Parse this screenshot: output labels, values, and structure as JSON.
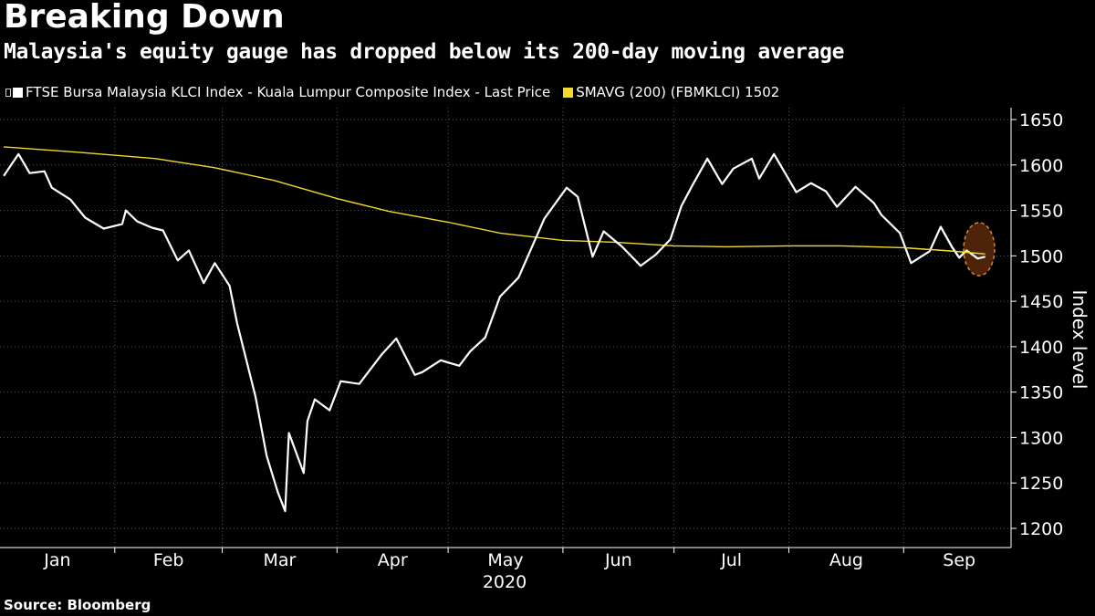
{
  "title": "Breaking Down",
  "subtitle": "Malaysia's equity gauge has dropped below its 200-day moving average",
  "source": "Source: Bloomberg",
  "colors": {
    "background": "#000000",
    "price_line": "#ffffff",
    "sma_line": "#f2d92b",
    "highlight_fill": "#5a2a0a",
    "highlight_stroke": "#d9862a",
    "grid": "#555555"
  },
  "chart_data": {
    "type": "line",
    "title": "Breaking Down",
    "subtitle": "Malaysia's equity gauge has dropped below its 200-day moving average",
    "xlabel": "2020",
    "ylabel": "Index level",
    "ylim": [
      1200,
      1660
    ],
    "yticks": [
      1200,
      1250,
      1300,
      1350,
      1400,
      1450,
      1500,
      1550,
      1600,
      1650
    ],
    "x_axis": {
      "year_label": "2020",
      "months": [
        "Jan",
        "Feb",
        "Mar",
        "Apr",
        "May",
        "Jun",
        "Jul",
        "Aug",
        "Sep"
      ]
    },
    "grid": true,
    "legend_position": "top-left",
    "annotation": "circle highlighting latest price near the moving average",
    "series": [
      {
        "name": "FTSE Bursa Malaysia KLCI Index - Kuala Lumpur Composite Index - Last Price",
        "legend_icon": "white-square",
        "color": "#ffffff",
        "x": [
          "2020-01-02",
          "2020-01-06",
          "2020-01-09",
          "2020-01-13",
          "2020-01-15",
          "2020-01-20",
          "2020-01-24",
          "2020-01-29",
          "2020-02-03",
          "2020-02-04",
          "2020-02-07",
          "2020-02-11",
          "2020-02-14",
          "2020-02-18",
          "2020-02-21",
          "2020-02-25",
          "2020-02-28",
          "2020-03-03",
          "2020-03-05",
          "2020-03-10",
          "2020-03-13",
          "2020-03-16",
          "2020-03-18",
          "2020-03-19",
          "2020-03-23",
          "2020-03-24",
          "2020-03-26",
          "2020-03-30",
          "2020-04-02",
          "2020-04-07",
          "2020-04-13",
          "2020-04-17",
          "2020-04-22",
          "2020-04-24",
          "2020-04-29",
          "2020-05-04",
          "2020-05-07",
          "2020-05-11",
          "2020-05-15",
          "2020-05-20",
          "2020-05-27",
          "2020-06-02",
          "2020-06-05",
          "2020-06-09",
          "2020-06-12",
          "2020-06-17",
          "2020-06-22",
          "2020-06-26",
          "2020-06-30",
          "2020-07-03",
          "2020-07-06",
          "2020-07-10",
          "2020-07-14",
          "2020-07-17",
          "2020-07-22",
          "2020-07-24",
          "2020-07-28",
          "2020-08-03",
          "2020-08-07",
          "2020-08-11",
          "2020-08-14",
          "2020-08-19",
          "2020-08-24",
          "2020-08-26",
          "2020-08-31",
          "2020-09-03",
          "2020-09-08",
          "2020-09-11",
          "2020-09-14",
          "2020-09-16",
          "2020-09-18",
          "2020-09-21",
          "2020-09-23"
        ],
        "values": [
          1588,
          1612,
          1591,
          1593,
          1575,
          1562,
          1542,
          1530,
          1535,
          1550,
          1538,
          1531,
          1528,
          1495,
          1506,
          1470,
          1492,
          1467,
          1426,
          1345,
          1280,
          1240,
          1219,
          1305,
          1261,
          1318,
          1342,
          1330,
          1362,
          1359,
          1391,
          1409,
          1369,
          1372,
          1385,
          1379,
          1395,
          1410,
          1455,
          1476,
          1541,
          1575,
          1565,
          1499,
          1527,
          1510,
          1489,
          1501,
          1518,
          1555,
          1578,
          1607,
          1579,
          1596,
          1607,
          1585,
          1612,
          1570,
          1580,
          1571,
          1554,
          1576,
          1558,
          1545,
          1525,
          1492,
          1505,
          1532,
          1510,
          1498,
          1506,
          1497,
          1499
        ]
      },
      {
        "name": "SMAVG (200) (FBMKLCI) 1502",
        "legend_icon": "yellow-square",
        "color": "#f2d92b",
        "x": [
          "2020-01-02",
          "2020-01-22",
          "2020-02-12",
          "2020-02-28",
          "2020-03-15",
          "2020-04-01",
          "2020-04-15",
          "2020-05-01",
          "2020-05-15",
          "2020-06-01",
          "2020-06-15",
          "2020-07-01",
          "2020-07-15",
          "2020-08-01",
          "2020-08-15",
          "2020-09-01",
          "2020-09-15",
          "2020-09-23"
        ],
        "values": [
          1620,
          1614,
          1607,
          1597,
          1583,
          1563,
          1549,
          1537,
          1525,
          1517,
          1515,
          1511,
          1510,
          1511,
          1511,
          1509,
          1505,
          1502
        ]
      }
    ]
  }
}
